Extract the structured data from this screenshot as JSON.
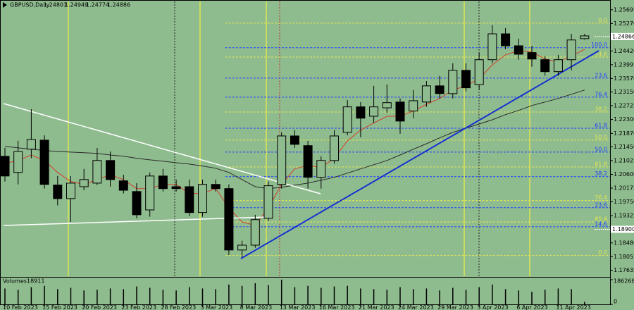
{
  "chart_data": {
    "type": "candlestick",
    "symbol": "GBPUSD,Daily",
    "ohlc": [
      1.24801,
      1.24949,
      1.24774,
      1.24886
    ],
    "categories": [
      "10 Feb 2023",
      null,
      null,
      "15 Feb 2023",
      null,
      null,
      "20 Feb 2023",
      null,
      null,
      "23 Feb 2023",
      null,
      null,
      "28 Feb 2023",
      null,
      null,
      "3 Mar 2023",
      null,
      null,
      "8 Mar 2023",
      null,
      null,
      "13 Mar 2023",
      null,
      null,
      "16 Mar 2023",
      null,
      null,
      "21 Mar 2023",
      null,
      null,
      "24 Mar 2023",
      null,
      null,
      "29 Mar 2023",
      null,
      null,
      "3 Apr 2023",
      null,
      null,
      "6 Apr 2023",
      null,
      null,
      "11 Apr 2023",
      null,
      null
    ],
    "open": [
      1.2116,
      1.2066,
      1.2138,
      1.2166,
      1.2027,
      1.1985,
      1.2022,
      1.2033,
      1.2103,
      1.204,
      1.2007,
      1.195,
      1.2055,
      1.2022,
      1.2022,
      1.1942,
      1.2029,
      1.2016,
      1.1826,
      1.1841,
      1.1924,
      1.2029,
      1.2179,
      1.2149,
      1.2051,
      1.2103,
      1.219,
      1.2269,
      1.224,
      1.2266,
      1.2284,
      1.2256,
      1.2284,
      1.2334,
      1.231,
      1.2382,
      1.2338,
      1.2415,
      1.2495,
      1.2458,
      1.2437,
      1.2415,
      1.2378,
      1.2415,
      1.24801
    ],
    "high": [
      1.2142,
      1.2164,
      1.2262,
      1.2181,
      1.2055,
      1.2055,
      1.2077,
      1.2142,
      1.2131,
      1.2059,
      1.2033,
      1.2066,
      1.2077,
      1.2044,
      1.2044,
      1.2044,
      1.2044,
      1.2029,
      1.1855,
      1.1935,
      1.2038,
      1.219,
      1.2197,
      1.2164,
      1.2116,
      1.2197,
      1.229,
      1.2284,
      1.2334,
      1.2338,
      1.2295,
      1.2321,
      1.2349,
      1.2365,
      1.2404,
      1.2404,
      1.2437,
      1.2522,
      1.2513,
      1.248,
      1.2458,
      1.2426,
      1.243,
      1.2495,
      1.24949
    ],
    "low": [
      1.2038,
      1.2029,
      1.211,
      1.2016,
      1.1964,
      1.1913,
      1.2011,
      1.2027,
      1.2022,
      1.2001,
      1.1924,
      1.1929,
      1.2007,
      1.2007,
      1.1931,
      1.1929,
      1.2007,
      1.1811,
      1.1804,
      1.1833,
      1.1916,
      1.2016,
      1.2142,
      1.2016,
      1.2016,
      1.2094,
      1.2181,
      1.2175,
      1.2219,
      1.2251,
      1.2186,
      1.2234,
      1.2269,
      1.2295,
      1.2295,
      1.2317,
      1.2321,
      1.2404,
      1.2447,
      1.2415,
      1.2393,
      1.2365,
      1.2365,
      1.2382,
      1.24774
    ],
    "close": [
      1.2055,
      1.2131,
      1.2168,
      1.2029,
      1.1985,
      1.2033,
      1.2044,
      1.2103,
      1.2044,
      1.2011,
      1.1935,
      1.2055,
      1.2016,
      1.2016,
      1.1942,
      1.2029,
      1.2016,
      1.1826,
      1.1841,
      1.192,
      1.2025,
      1.2179,
      1.2153,
      1.2051,
      1.2103,
      1.2179,
      1.2269,
      1.2234,
      1.2269,
      1.2282,
      1.2225,
      1.2288,
      1.2334,
      1.231,
      1.2382,
      1.2328,
      1.2415,
      1.2495,
      1.2458,
      1.2432,
      1.2417,
      1.2378,
      1.2415,
      1.2476,
      1.24886
    ],
    "bull_color": "#8fbc8f",
    "bear_color": "#000000",
    "moving_averages": [
      {
        "color": "#d0402a",
        "values": [
          1.2094,
          1.2103,
          1.212,
          1.2103,
          1.2066,
          1.2038,
          1.2029,
          1.2044,
          1.2059,
          1.2044,
          1.2016,
          1.2016,
          1.2029,
          1.2029,
          1.2001,
          1.2001,
          1.2016,
          1.1957,
          1.1913,
          1.1902,
          1.1957,
          1.2029,
          1.2077,
          1.2088,
          1.2081,
          1.211,
          1.2164,
          1.2197,
          1.2219,
          1.224,
          1.224,
          1.2256,
          1.2277,
          1.2295,
          1.2321,
          1.2334,
          1.2356,
          1.2399,
          1.243,
          1.2443,
          1.2439,
          1.2417,
          1.2408,
          1.2426,
          1.2447
        ]
      },
      {
        "color": "#2a2a2a",
        "values": [
          1.2147,
          1.2142,
          1.2138,
          1.2134,
          1.2131,
          1.2129,
          1.2127,
          1.2125,
          1.212,
          1.2116,
          1.211,
          1.2105,
          1.2101,
          1.2096,
          1.2092,
          1.2086,
          1.2079,
          1.2066,
          1.2044,
          1.2022,
          1.2016,
          1.202,
          1.2027,
          1.2033,
          1.2042,
          1.2051,
          1.2064,
          1.2077,
          1.209,
          1.2103,
          1.212,
          1.2138,
          1.2155,
          1.2173,
          1.219,
          1.2203,
          1.2216,
          1.2229,
          1.2245,
          1.2258,
          1.2273,
          1.2284,
          1.2295,
          1.2308,
          1.2321
        ]
      }
    ],
    "fib_levels": [
      {
        "value": 1.2528,
        "label": "0.0",
        "color": "#e6e650"
      },
      {
        "value": 1.2452,
        "label": "100.0",
        "color": "#2040ff"
      },
      {
        "value": 1.2423,
        "label": "14.6",
        "color": "#e6e650"
      },
      {
        "value": 1.2358,
        "label": "23.6",
        "color": "#2040ff"
      },
      {
        "value": 1.2299,
        "label": "76.4",
        "color": "#2040ff"
      },
      {
        "value": 1.2253,
        "label": "38.2",
        "color": "#e6e650"
      },
      {
        "value": 1.2203,
        "label": "61.8",
        "color": "#2040ff"
      },
      {
        "value": 1.2166,
        "label": "50.0",
        "color": "#e6e650"
      },
      {
        "value": 1.2129,
        "label": "50.0",
        "color": "#2040ff"
      },
      {
        "value": 1.2083,
        "label": "61.8",
        "color": "#e6e650"
      },
      {
        "value": 1.2053,
        "label": "38.2",
        "color": "#2040ff"
      },
      {
        "value": 1.1979,
        "label": "76.4",
        "color": "#e6e650"
      },
      {
        "value": 1.1957,
        "label": "23.6",
        "color": "#2040ff"
      },
      {
        "value": 1.1913,
        "label": "85.4",
        "color": "#e6e650"
      },
      {
        "value": 1.1898,
        "label": "14.6",
        "color": "#2040ff"
      },
      {
        "value": 1.1809,
        "label": "0.0",
        "color": "#e6e650"
      }
    ],
    "ylim": [
      1.1745,
      1.2591
    ],
    "yticks": [
      1.25695,
      {
        "value": 1.2527,
        "label": "1.25270"
      },
      {
        "value": 1.2442,
        "label": "1.24420"
      },
      1.23995,
      {
        "value": 1.2357,
        "label": "1.23570"
      },
      {
        "value": 1.2315,
        "label": "1.23150"
      },
      1.22725,
      {
        "value": 1.223,
        "label": "1.22300"
      },
      {
        "value": 1.2187,
        "label": "1.21870"
      },
      {
        "value": 1.2145,
        "label": "1.21450"
      },
      1.21025,
      {
        "value": 1.206,
        "label": "1.20600"
      },
      1.20175,
      {
        "value": 1.1975,
        "label": "1.19750"
      },
      1.19325,
      {
        "value": 1.1848,
        "label": "1.18480"
      },
      1.18055,
      1.17635
    ],
    "marked_prices": [
      1.24866,
      {
        "value": 1.189,
        "label": "1.18900"
      }
    ],
    "volume_title": "Volumes",
    "volumes": [
      120000,
      110000,
      130000,
      140000,
      115000,
      125000,
      105000,
      110000,
      120000,
      115000,
      135000,
      125000,
      110000,
      105000,
      130000,
      120000,
      115000,
      150000,
      140000,
      160000,
      145000,
      186268,
      130000,
      140000,
      125000,
      135000,
      140000,
      120000,
      115000,
      110000,
      130000,
      115000,
      120000,
      105000,
      125000,
      110000,
      130000,
      150000,
      115000,
      105000,
      95000,
      110000,
      120000,
      115000,
      18911
    ],
    "vlim": [
      0,
      186268
    ],
    "vticks": [
      186268,
      0
    ]
  }
}
